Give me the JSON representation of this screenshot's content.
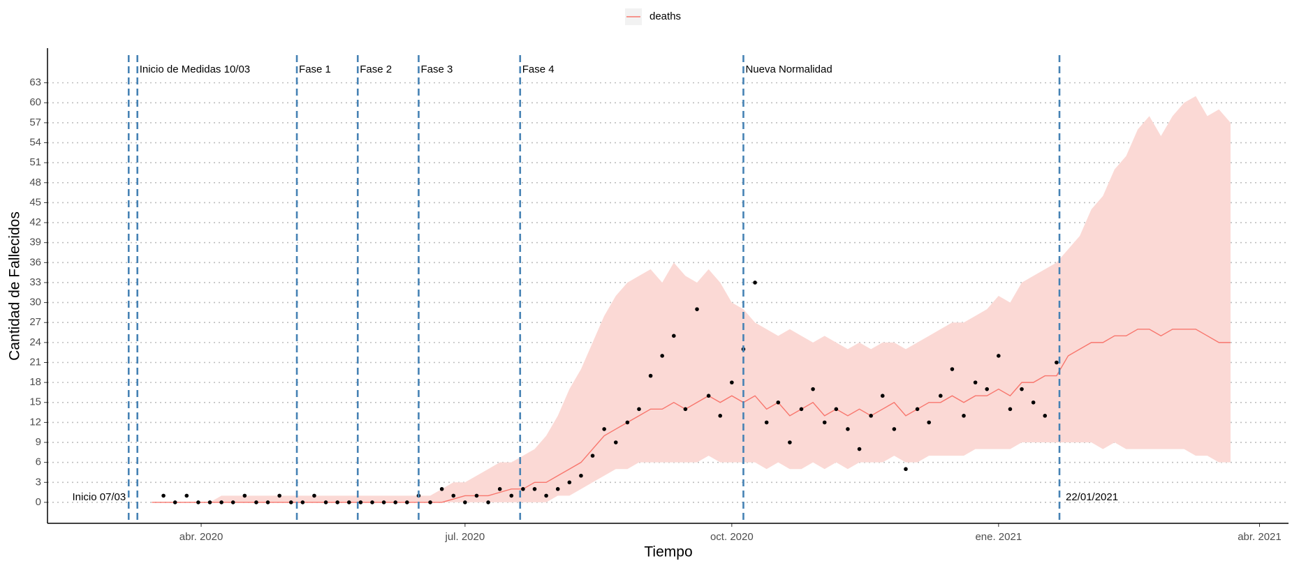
{
  "chart_data": {
    "type": "line",
    "xlabel": "Tiempo",
    "ylabel": "Cantidad de Fallecidos",
    "x": [
      "2020-03-15",
      "2020-03-19",
      "2020-03-23",
      "2020-03-27",
      "2020-03-31",
      "2020-04-04",
      "2020-04-08",
      "2020-04-12",
      "2020-04-16",
      "2020-04-20",
      "2020-04-24",
      "2020-04-28",
      "2020-05-02",
      "2020-05-06",
      "2020-05-10",
      "2020-05-14",
      "2020-05-18",
      "2020-05-22",
      "2020-05-26",
      "2020-05-30",
      "2020-06-03",
      "2020-06-07",
      "2020-06-11",
      "2020-06-15",
      "2020-06-19",
      "2020-06-23",
      "2020-06-27",
      "2020-07-01",
      "2020-07-05",
      "2020-07-09",
      "2020-07-13",
      "2020-07-17",
      "2020-07-21",
      "2020-07-25",
      "2020-07-29",
      "2020-08-02",
      "2020-08-06",
      "2020-08-10",
      "2020-08-14",
      "2020-08-18",
      "2020-08-22",
      "2020-08-26",
      "2020-08-30",
      "2020-09-03",
      "2020-09-07",
      "2020-09-11",
      "2020-09-15",
      "2020-09-19",
      "2020-09-23",
      "2020-09-27",
      "2020-10-01",
      "2020-10-05",
      "2020-10-09",
      "2020-10-13",
      "2020-10-17",
      "2020-10-21",
      "2020-10-25",
      "2020-10-29",
      "2020-11-02",
      "2020-11-06",
      "2020-11-10",
      "2020-11-14",
      "2020-11-18",
      "2020-11-22",
      "2020-11-26",
      "2020-11-30",
      "2020-12-04",
      "2020-12-08",
      "2020-12-12",
      "2020-12-16",
      "2020-12-20",
      "2020-12-24",
      "2020-12-28",
      "2021-01-01",
      "2021-01-05",
      "2021-01-09",
      "2021-01-13",
      "2021-01-17",
      "2021-01-21",
      "2021-01-25",
      "2021-01-29",
      "2021-02-02",
      "2021-02-06",
      "2021-02-10",
      "2021-02-14",
      "2021-02-18",
      "2021-02-22",
      "2021-02-26",
      "2021-03-02",
      "2021-03-06",
      "2021-03-10",
      "2021-03-14",
      "2021-03-18",
      "2021-03-22"
    ],
    "series": [
      {
        "name": "deaths",
        "color": "#F8766D",
        "band_color": "#FBD9D5",
        "values": [
          0,
          0,
          0,
          0,
          0,
          0,
          0,
          0,
          0,
          0,
          0,
          0,
          0,
          0,
          0,
          0,
          0,
          0,
          0,
          0,
          0,
          0,
          0,
          0,
          0,
          0,
          0.5,
          1,
          1,
          1,
          1.5,
          2,
          2,
          3,
          3,
          4,
          5,
          6,
          8,
          10,
          11,
          12,
          13,
          14,
          14,
          15,
          14,
          15,
          16,
          15,
          16,
          15,
          16,
          14,
          15,
          13,
          14,
          15,
          13,
          14,
          13,
          14,
          13,
          14,
          15,
          13,
          14,
          15,
          15,
          16,
          15,
          16,
          16,
          17,
          16,
          18,
          18,
          19,
          19,
          22,
          23,
          24,
          24,
          25,
          25,
          26,
          26,
          25,
          26,
          26,
          26,
          25,
          24,
          24
        ],
        "lower": [
          0,
          0,
          0,
          0,
          0,
          0,
          0,
          0,
          0,
          0,
          0,
          0,
          0,
          0,
          0,
          0,
          0,
          0,
          0,
          0,
          0,
          0,
          0,
          0,
          0,
          0,
          0,
          0,
          0,
          0,
          0,
          0,
          0,
          0,
          0,
          1,
          1,
          2,
          3,
          4,
          5,
          5,
          6,
          6,
          6,
          6,
          6,
          6,
          7,
          6,
          6,
          6,
          6,
          5,
          6,
          5,
          5,
          6,
          5,
          6,
          5,
          6,
          6,
          6,
          7,
          6,
          6,
          7,
          7,
          7,
          7,
          8,
          8,
          8,
          8,
          9,
          9,
          9,
          9,
          9,
          9,
          9,
          8,
          9,
          8,
          8,
          8,
          8,
          8,
          8,
          7,
          7,
          6,
          6
        ],
        "upper": [
          0,
          0,
          0,
          0,
          0,
          0,
          1,
          1,
          1,
          1,
          1,
          1,
          1,
          1,
          1,
          1,
          1,
          1,
          1,
          1,
          1,
          1,
          1,
          1,
          1,
          2,
          3,
          3,
          4,
          5,
          6,
          6,
          7,
          8,
          10,
          13,
          17,
          20,
          24,
          28,
          31,
          33,
          34,
          35,
          33,
          36,
          34,
          33,
          35,
          33,
          30,
          29,
          27,
          26,
          25,
          26,
          25,
          24,
          25,
          24,
          23,
          24,
          23,
          24,
          24,
          23,
          24,
          25,
          26,
          27,
          27,
          28,
          29,
          31,
          30,
          33,
          34,
          35,
          36,
          38,
          40,
          44,
          46,
          50,
          52,
          56,
          58,
          55,
          58,
          60,
          61,
          58,
          59,
          57
        ]
      }
    ],
    "points": {
      "color": "#000000",
      "values": [
        null,
        1,
        0,
        1,
        0,
        0,
        0,
        0,
        1,
        0,
        0,
        1,
        0,
        0,
        1,
        0,
        0,
        0,
        0,
        0,
        0,
        0,
        0,
        1,
        0,
        2,
        1,
        0,
        1,
        0,
        2,
        1,
        2,
        2,
        1,
        2,
        3,
        4,
        7,
        11,
        9,
        12,
        14,
        19,
        22,
        25,
        14,
        29,
        16,
        13,
        18,
        23,
        33,
        12,
        15,
        9,
        14,
        17,
        12,
        14,
        11,
        8,
        13,
        16,
        11,
        5,
        14,
        12,
        16,
        20,
        13,
        18,
        17,
        22,
        14,
        17,
        15,
        13,
        21,
        null,
        null,
        null,
        null,
        null,
        null,
        null,
        null,
        null,
        null,
        null,
        null,
        null,
        null,
        null
      ]
    },
    "vlines": [
      {
        "x": "2020-03-07",
        "label": "Inicio 07/03"
      },
      {
        "x": "2020-03-10",
        "label": "Inicio de Medidas 10/03"
      },
      {
        "x": "2020-05-04",
        "label": "Fase 1"
      },
      {
        "x": "2020-05-25",
        "label": "Fase 2"
      },
      {
        "x": "2020-06-15",
        "label": "Fase 3"
      },
      {
        "x": "2020-07-20",
        "label": "Fase 4"
      },
      {
        "x": "2020-10-05",
        "label": "Nueva Normalidad"
      },
      {
        "x": "2021-01-22",
        "label": "22/01/2021"
      }
    ],
    "vline_color": "#4682B4",
    "xlim": [
      "2020-02-08",
      "2021-04-11"
    ],
    "xticks": [
      {
        "value": "2020-04-01",
        "label": "abr. 2020"
      },
      {
        "value": "2020-07-01",
        "label": "jul. 2020"
      },
      {
        "value": "2020-10-01",
        "label": "oct. 2020"
      },
      {
        "value": "2021-01-01",
        "label": "ene. 2021"
      },
      {
        "value": "2021-04-01",
        "label": "abr. 2021"
      }
    ],
    "ylim": [
      -3.15,
      68.2
    ],
    "yticks": [
      0,
      3,
      6,
      9,
      12,
      15,
      18,
      21,
      24,
      27,
      30,
      33,
      36,
      39,
      42,
      45,
      48,
      51,
      54,
      57,
      60,
      63
    ],
    "grid": true,
    "legend": "top"
  }
}
